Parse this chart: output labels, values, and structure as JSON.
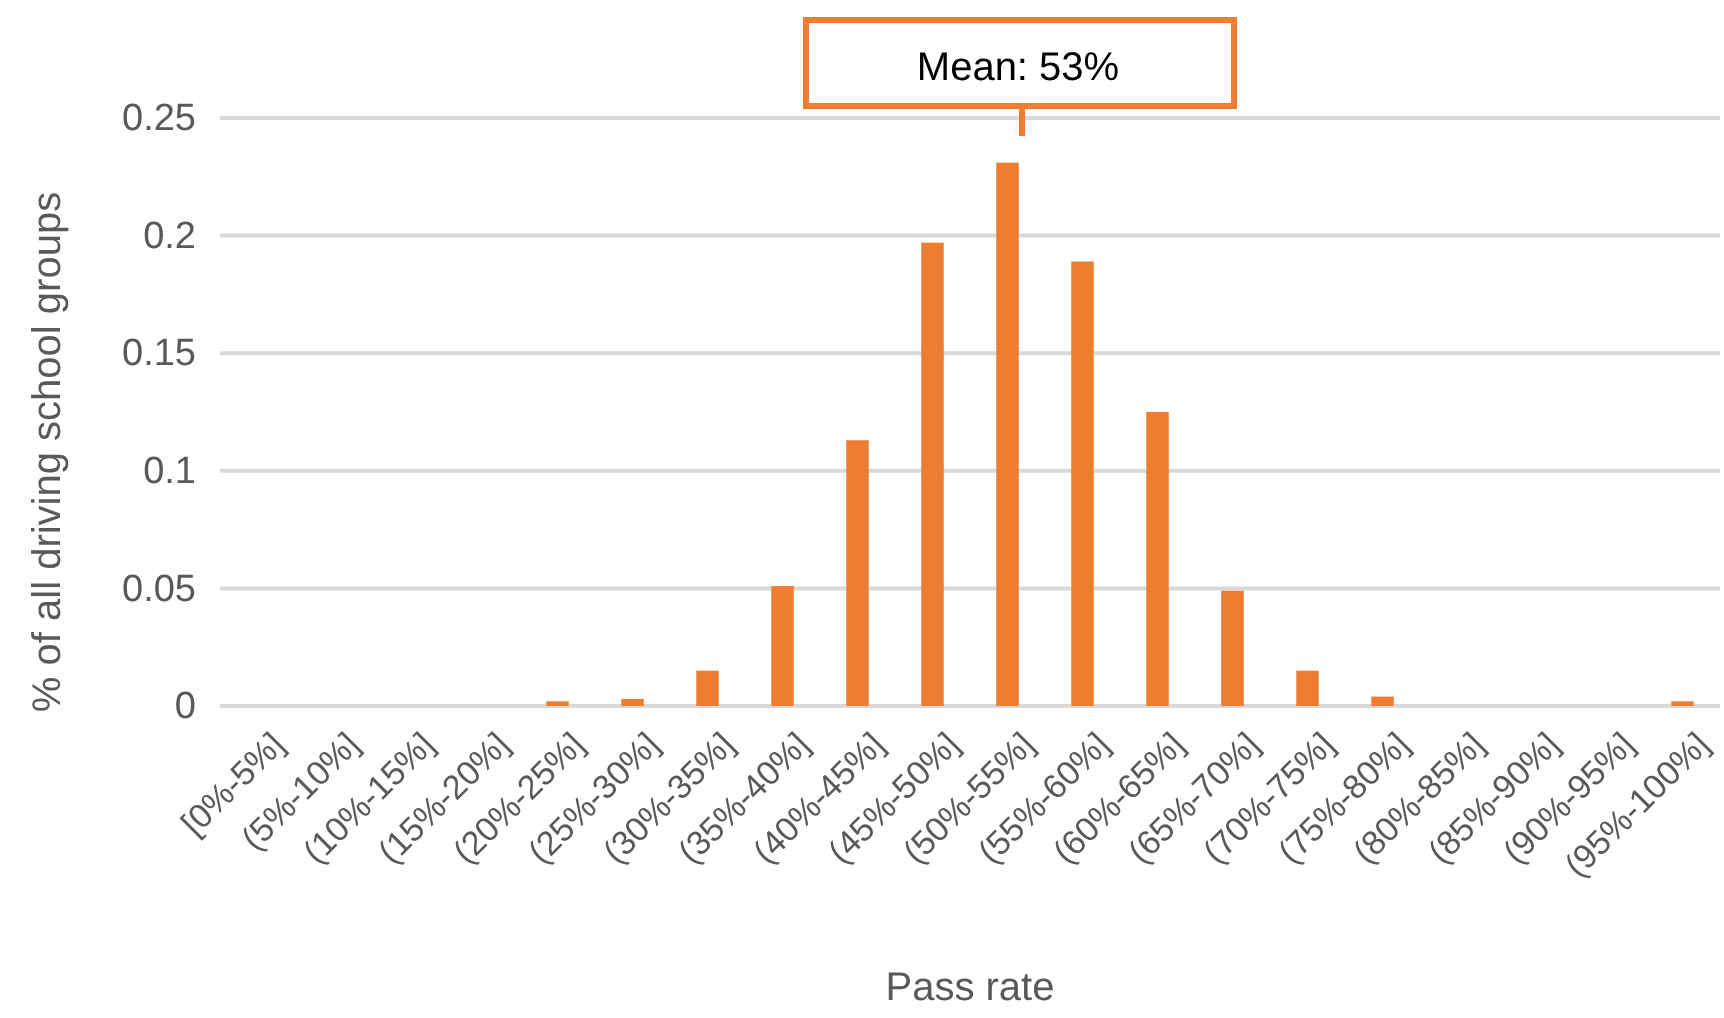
{
  "chart_data": {
    "type": "bar",
    "xlabel": "Pass rate",
    "ylabel": "% of all driving school groups",
    "categories": [
      "[0%-5%]",
      "(5%-10%]",
      "(10%-15%]",
      "(15%-20%]",
      "(20%-25%]",
      "(25%-30%]",
      "(30%-35%]",
      "(35%-40%]",
      "(40%-45%]",
      "(45%-50%]",
      "(50%-55%]",
      "(55%-60%]",
      "(60%-65%]",
      "(65%-70%]",
      "(70%-75%]",
      "(75%-80%]",
      "(80%-85%]",
      "(85%-90%]",
      "(90%-95%]",
      "(95%-100%]"
    ],
    "series": [
      {
        "color": "#ed7d31",
        "values": [
          0,
          0,
          0,
          0,
          0.002,
          0.003,
          0.015,
          0.051,
          0.113,
          0.197,
          0.231,
          0.189,
          0.125,
          0.049,
          0.015,
          0.004,
          0,
          0,
          0,
          0.002
        ]
      }
    ],
    "ylim": [
      0,
      0.25
    ],
    "yticks": [
      0,
      0.05,
      0.1,
      0.15,
      0.2,
      {
        "value": 0.25,
        "label": "0.25"
      }
    ],
    "grid": "y",
    "annotations": [
      "Mean: 53%"
    ]
  }
}
